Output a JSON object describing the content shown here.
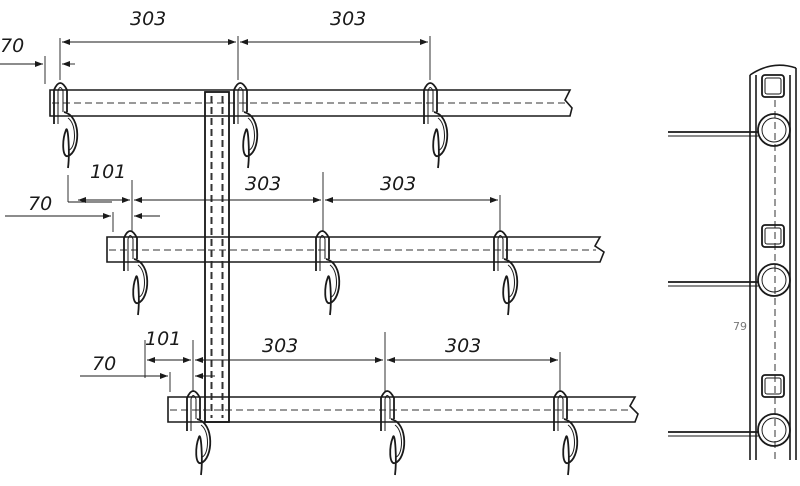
{
  "dimensions": {
    "row1": [
      "70",
      "303",
      "303"
    ],
    "row2": [
      "70",
      "101",
      "303",
      "303"
    ],
    "row3": [
      "70",
      "101",
      "303",
      "303"
    ]
  },
  "side_view_label": "79"
}
